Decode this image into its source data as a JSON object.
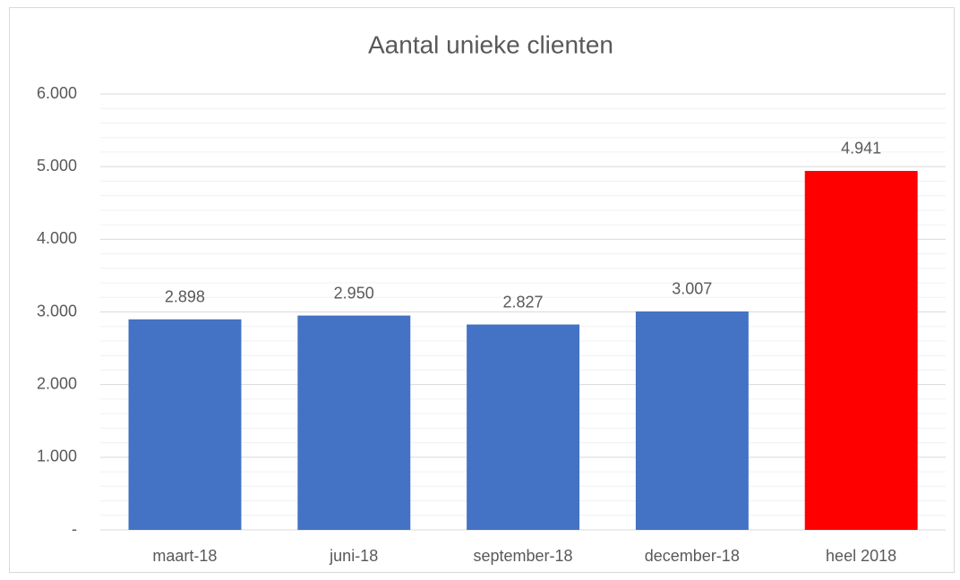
{
  "chart_data": {
    "type": "bar",
    "title": "Aantal unieke clienten",
    "categories": [
      "maart-18",
      "juni-18",
      "september-18",
      "december-18",
      "heel 2018"
    ],
    "values": [
      2898,
      2950,
      2827,
      3007,
      4941
    ],
    "value_labels": [
      "2.898",
      "2.950",
      "2.827",
      "3.007",
      "4.941"
    ],
    "colors": [
      "#4472c4",
      "#4472c4",
      "#4472c4",
      "#4472c4",
      "#ff0000"
    ],
    "ylim": [
      0,
      6000
    ],
    "yticks": [
      {
        "value": 0,
        "label": "-"
      },
      {
        "value": 1000,
        "label": "1.000"
      },
      {
        "value": 2000,
        "label": "2.000"
      },
      {
        "value": 3000,
        "label": "3.000"
      },
      {
        "value": 4000,
        "label": "4.000"
      },
      {
        "value": 5000,
        "label": "5.000"
      },
      {
        "value": 6000,
        "label": "6.000"
      }
    ],
    "grid": true,
    "minor_grid_divisions": 5
  }
}
